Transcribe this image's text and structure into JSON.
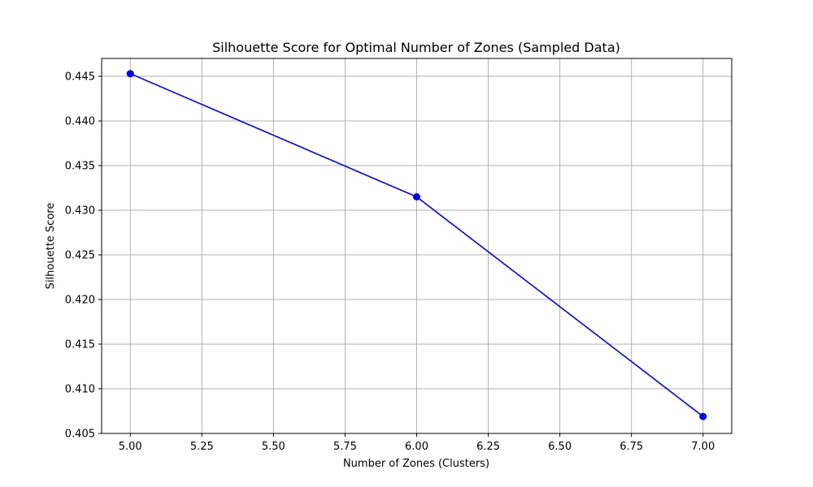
{
  "chart_data": {
    "type": "line",
    "title": "Silhouette Score for Optimal Number of Zones (Sampled Data)",
    "xlabel": "Number of Zones (Clusters)",
    "ylabel": "Silhouette Score",
    "xlim": [
      4.9,
      7.1
    ],
    "ylim": [
      0.405,
      0.447
    ],
    "x_ticks": [
      5.0,
      5.25,
      5.5,
      5.75,
      6.0,
      6.25,
      6.5,
      6.75,
      7.0
    ],
    "x_tick_labels": [
      "5.00",
      "5.25",
      "5.50",
      "5.75",
      "6.00",
      "6.25",
      "6.50",
      "6.75",
      "7.00"
    ],
    "y_ticks": [
      0.405,
      0.41,
      0.415,
      0.42,
      0.425,
      0.43,
      0.435,
      0.44,
      0.445
    ],
    "y_tick_labels": [
      "0.405",
      "0.410",
      "0.415",
      "0.420",
      "0.425",
      "0.430",
      "0.435",
      "0.440",
      "0.445"
    ],
    "grid": true,
    "series": [
      {
        "name": "Silhouette Score",
        "x": [
          5,
          6,
          7
        ],
        "values": [
          0.4453,
          0.4315,
          0.4069
        ],
        "color": "#0000ff",
        "marker": "circle"
      }
    ]
  },
  "colors": {
    "background": "#ffffff",
    "axes": "#000000",
    "grid": "#b0b0b0",
    "line": "#0000ff"
  }
}
